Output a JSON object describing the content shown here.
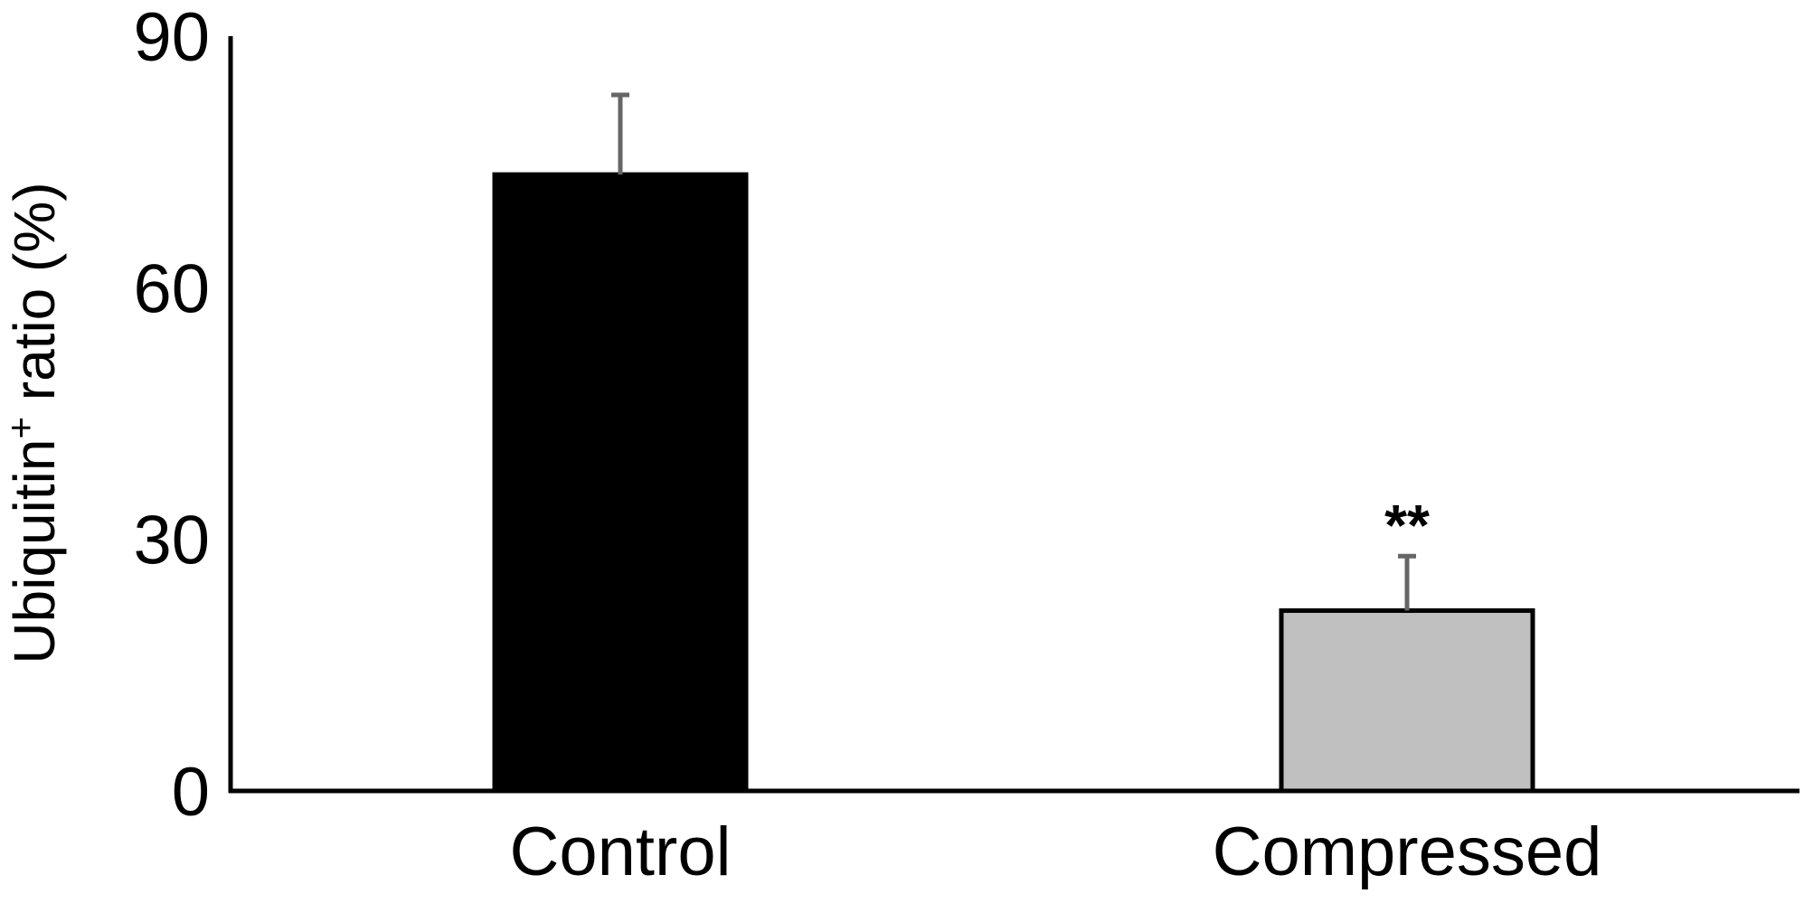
{
  "chart_data": {
    "type": "bar",
    "title": "",
    "xlabel": "",
    "ylabel_main": "Ubiquitin",
    "ylabel_sup": "+",
    "ylabel_tail": " ratio (%)",
    "categories": [
      "Control",
      "Compressed"
    ],
    "values": [
      73.5,
      21.5
    ],
    "errors": [
      9.5,
      6.5
    ],
    "annotations": [
      "",
      "**"
    ],
    "ylim": [
      0,
      90
    ],
    "yticks": [
      "0",
      "30",
      "60",
      "90"
    ],
    "grid": false,
    "legend": "none",
    "colors": {
      "bar_fills": [
        "#000000",
        "#c0c0c0"
      ],
      "bar_stroke": "#000000",
      "error_bar": "#666666",
      "axis": "#000000"
    }
  }
}
